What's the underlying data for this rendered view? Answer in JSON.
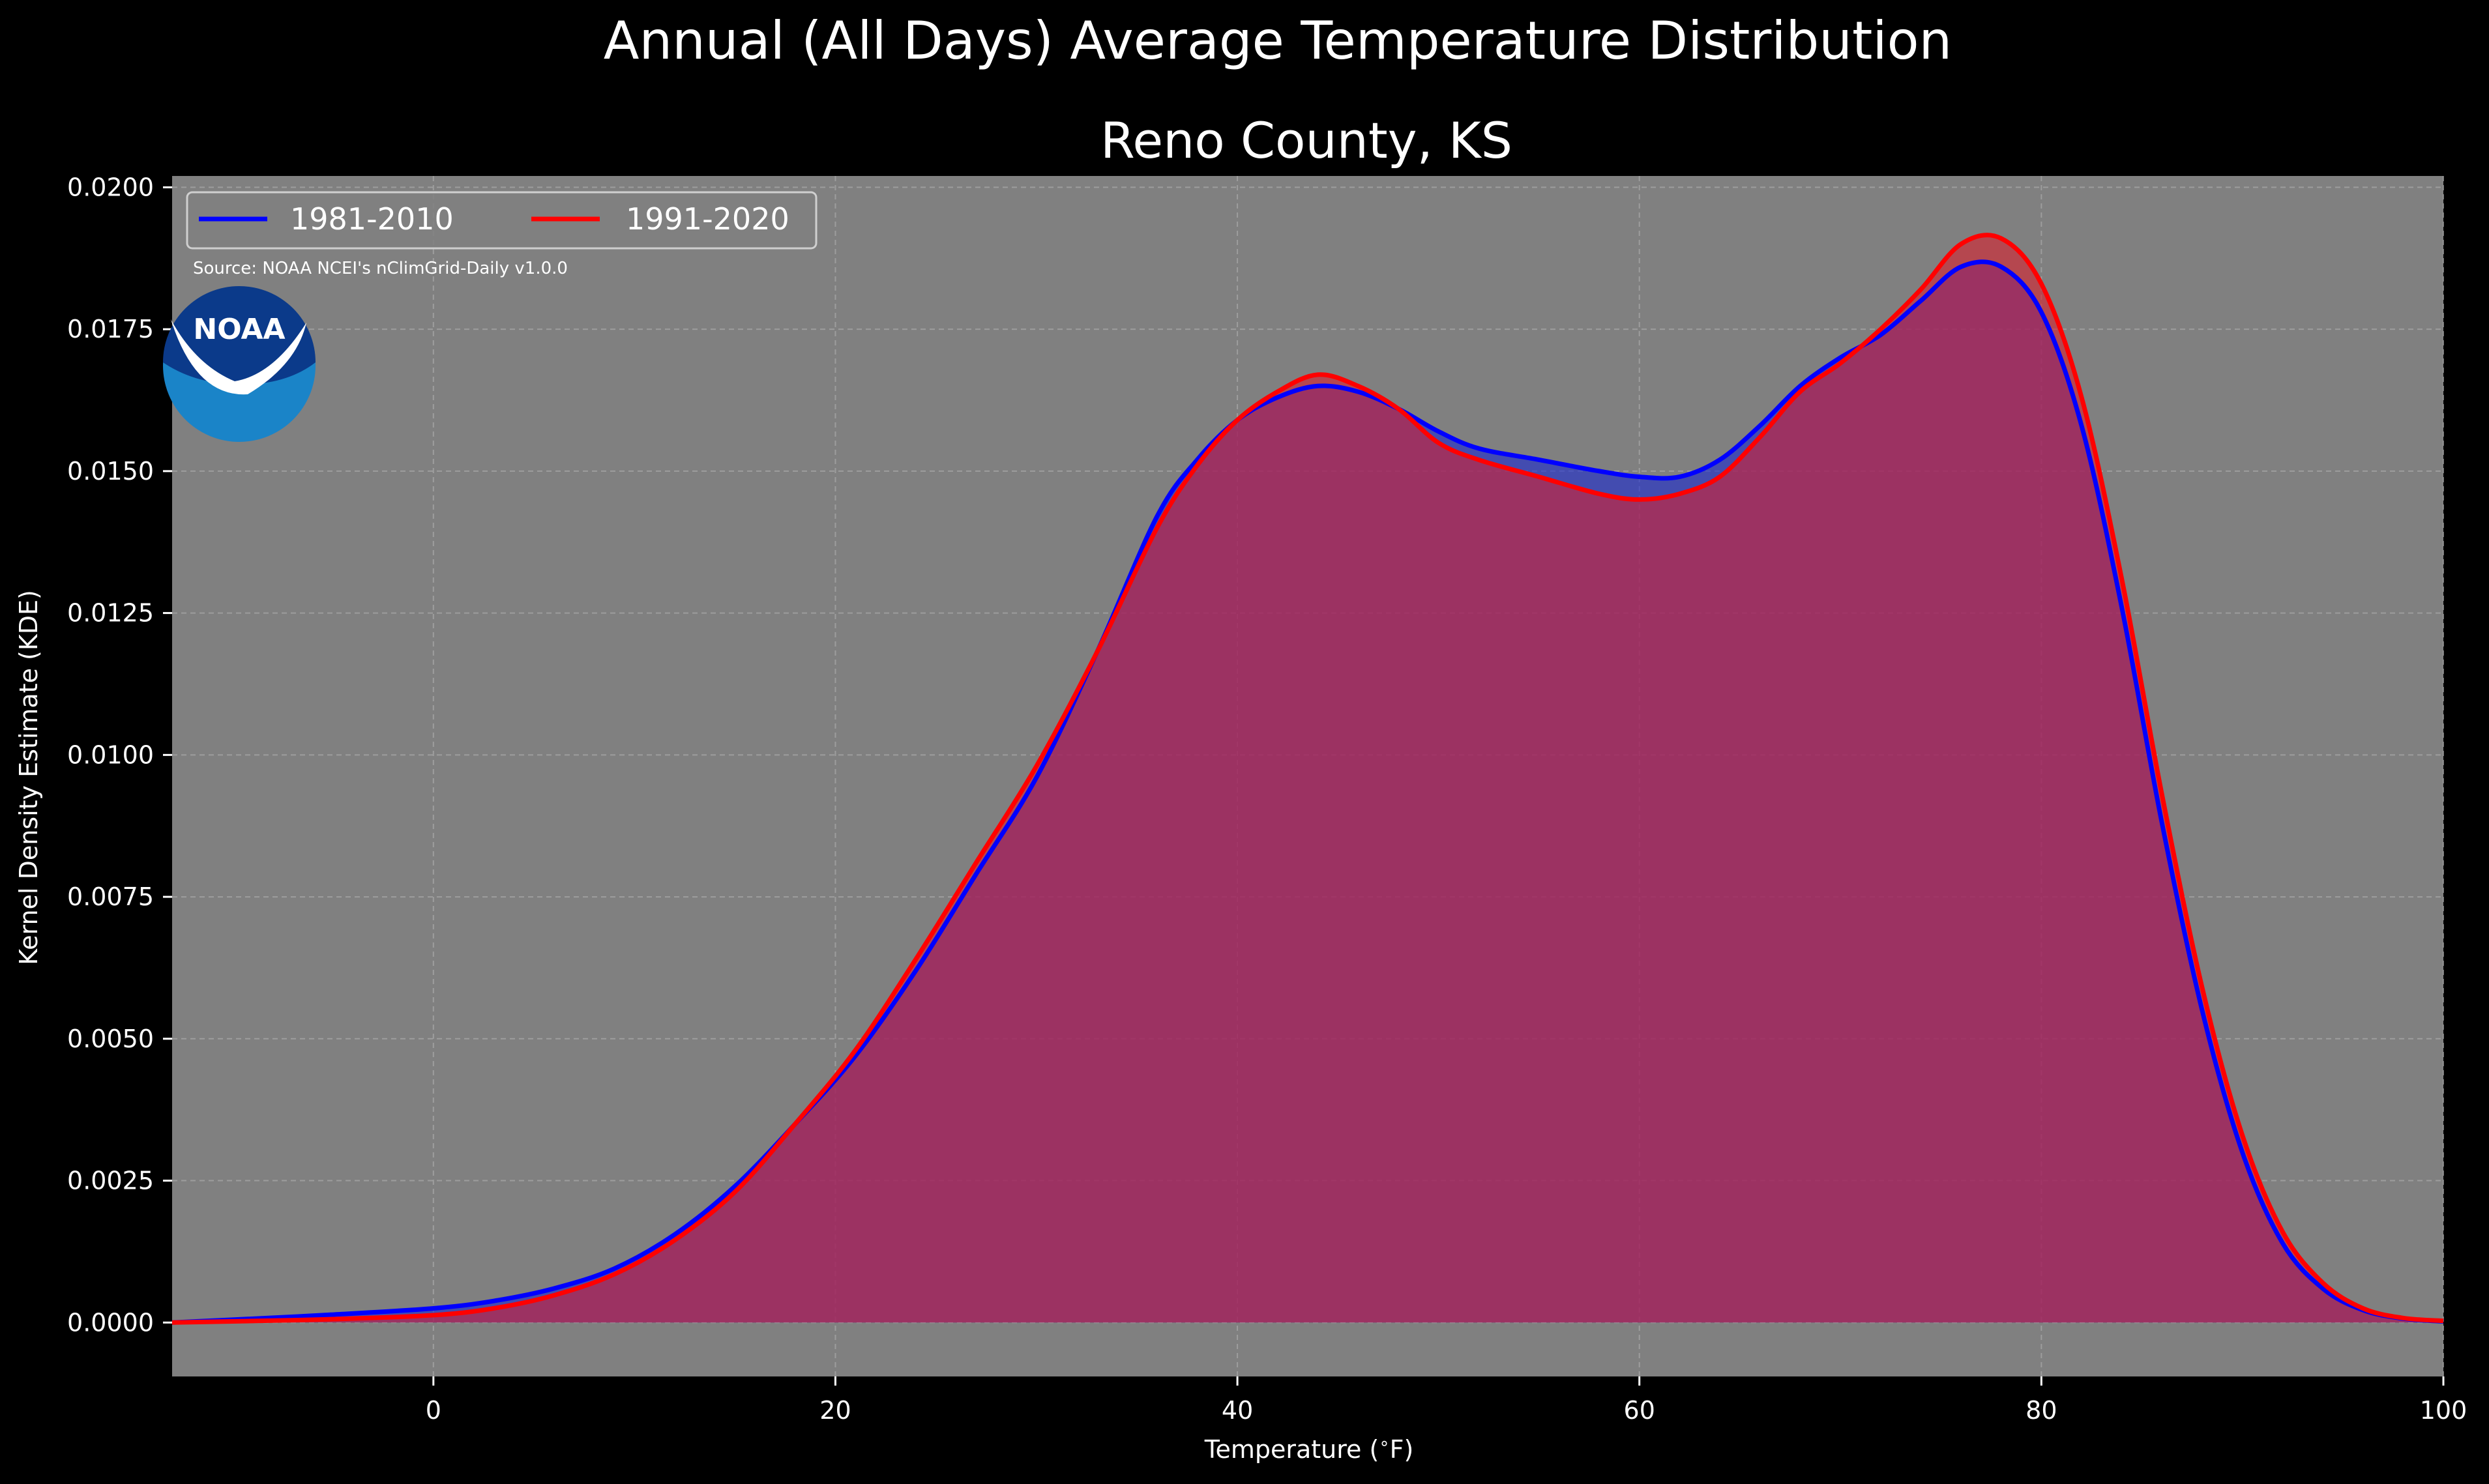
{
  "chart_data": {
    "type": "area",
    "title": "Annual (All Days) Average Temperature Distribution",
    "subtitle": "Reno County, KS",
    "xlabel": "Temperature ($^\\circ$F)",
    "ylabel": "Kernel Density Estimate (KDE)",
    "xlim": [
      -13,
      100
    ],
    "ylim": [
      -0.00095,
      0.0202
    ],
    "xticks": [
      0,
      20,
      40,
      60,
      80,
      100
    ],
    "xtick_labels": [
      "0",
      "20",
      "40",
      "60",
      "80",
      "100"
    ],
    "yticks": [
      0,
      0.0025,
      0.005,
      0.0075,
      0.01,
      0.0125,
      0.015,
      0.0175,
      0.02
    ],
    "ytick_labels": [
      "0.0000",
      "0.0025",
      "0.0050",
      "0.0075",
      "0.0100",
      "0.0125",
      "0.0150",
      "0.0175",
      "0.0200"
    ],
    "grid": true,
    "legend_placement": "upper-left",
    "source_note": "Source: NOAA NCEI's nClimGrid-Daily v1.0.0",
    "logo_text": "NOAA",
    "series": [
      {
        "name": "1981-2010",
        "color": "#0000ff",
        "fill": "#1a2ad0",
        "points": [
          [
            -13,
            0
          ],
          [
            -10,
            5e-05
          ],
          [
            -5,
            0.00014
          ],
          [
            0,
            0.00025
          ],
          [
            3,
            0.00038
          ],
          [
            6,
            0.0006
          ],
          [
            9,
            0.00095
          ],
          [
            12,
            0.00155
          ],
          [
            15,
            0.0024
          ],
          [
            18,
            0.0035
          ],
          [
            21,
            0.0047
          ],
          [
            24,
            0.0062
          ],
          [
            27,
            0.0079
          ],
          [
            30,
            0.0096
          ],
          [
            33,
            0.0118
          ],
          [
            36,
            0.0142
          ],
          [
            38,
            0.0152
          ],
          [
            40,
            0.0159
          ],
          [
            42,
            0.0163
          ],
          [
            44,
            0.0165
          ],
          [
            46,
            0.0164
          ],
          [
            48,
            0.0161
          ],
          [
            50,
            0.0157
          ],
          [
            52,
            0.0154
          ],
          [
            55,
            0.0152
          ],
          [
            58,
            0.015
          ],
          [
            60,
            0.0149
          ],
          [
            62,
            0.0149
          ],
          [
            64,
            0.0152
          ],
          [
            66,
            0.0158
          ],
          [
            68,
            0.0165
          ],
          [
            70,
            0.017
          ],
          [
            72,
            0.0174
          ],
          [
            74,
            0.018
          ],
          [
            76,
            0.0186
          ],
          [
            78,
            0.0186
          ],
          [
            80,
            0.0178
          ],
          [
            82,
            0.0158
          ],
          [
            84,
            0.0126
          ],
          [
            86,
            0.0088
          ],
          [
            88,
            0.0055
          ],
          [
            90,
            0.003
          ],
          [
            92,
            0.0014
          ],
          [
            94,
            0.0006
          ],
          [
            96,
            0.00022
          ],
          [
            98,
            7e-05
          ],
          [
            100,
            2e-05
          ]
        ]
      },
      {
        "name": "1991-2020",
        "color": "#ff0000",
        "fill": "#d8222e",
        "points": [
          [
            -13,
            0
          ],
          [
            -10,
            2e-05
          ],
          [
            -5,
            6e-05
          ],
          [
            0,
            0.00013
          ],
          [
            3,
            0.00025
          ],
          [
            6,
            0.00048
          ],
          [
            9,
            0.00085
          ],
          [
            12,
            0.00145
          ],
          [
            15,
            0.0023
          ],
          [
            18,
            0.0035
          ],
          [
            21,
            0.0048
          ],
          [
            24,
            0.0064
          ],
          [
            27,
            0.0081
          ],
          [
            30,
            0.0098
          ],
          [
            33,
            0.0118
          ],
          [
            36,
            0.014
          ],
          [
            38,
            0.0151
          ],
          [
            40,
            0.0159
          ],
          [
            42,
            0.0164
          ],
          [
            44,
            0.0167
          ],
          [
            46,
            0.0165
          ],
          [
            48,
            0.0161
          ],
          [
            50,
            0.0155
          ],
          [
            52,
            0.0152
          ],
          [
            55,
            0.0149
          ],
          [
            58,
            0.0146
          ],
          [
            60,
            0.0145
          ],
          [
            62,
            0.0146
          ],
          [
            64,
            0.0149
          ],
          [
            66,
            0.0156
          ],
          [
            68,
            0.0164
          ],
          [
            70,
            0.0169
          ],
          [
            72,
            0.0175
          ],
          [
            74,
            0.0182
          ],
          [
            76,
            0.019
          ],
          [
            78,
            0.0191
          ],
          [
            80,
            0.0183
          ],
          [
            82,
            0.0163
          ],
          [
            84,
            0.0131
          ],
          [
            86,
            0.0093
          ],
          [
            88,
            0.0059
          ],
          [
            90,
            0.0033
          ],
          [
            92,
            0.0016
          ],
          [
            94,
            0.0007
          ],
          [
            96,
            0.00025
          ],
          [
            98,
            8e-05
          ],
          [
            100,
            3e-05
          ]
        ]
      }
    ]
  }
}
